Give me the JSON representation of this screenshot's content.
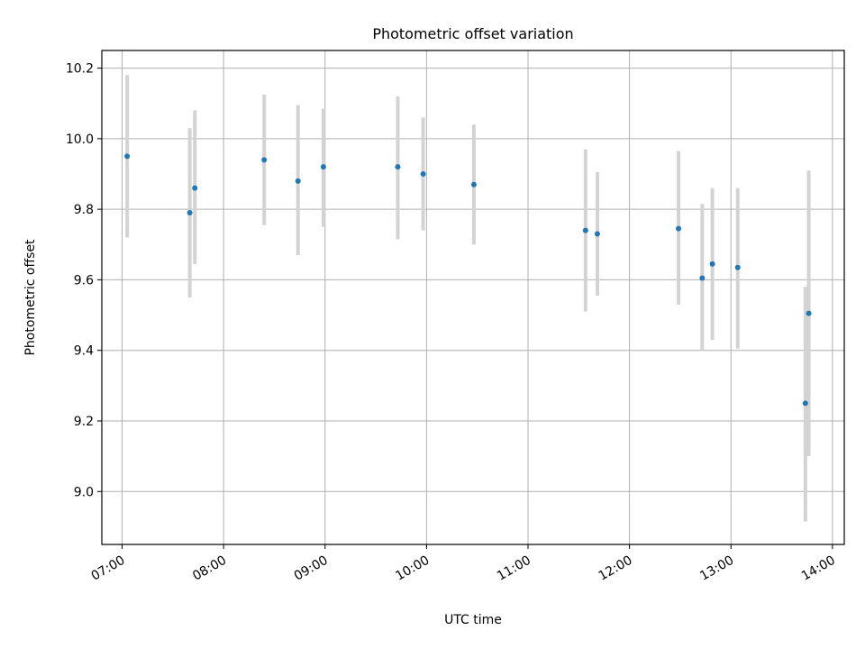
{
  "chart_data": {
    "type": "scatter",
    "title": "Photometric offset variation",
    "xlabel": "UTC time",
    "ylabel": "Photometric offset",
    "xlim": [
      "06:48",
      "14:07"
    ],
    "ylim": [
      8.85,
      10.25
    ],
    "x_ticks": [
      "07:00",
      "08:00",
      "09:00",
      "10:00",
      "11:00",
      "12:00",
      "13:00",
      "14:00"
    ],
    "y_ticks": [
      "9.0",
      "9.2",
      "9.4",
      "9.6",
      "9.8",
      "10.0",
      "10.2"
    ],
    "grid": true,
    "colors": {
      "point": "#1f77b4",
      "errorbar": "#d3d3d3",
      "grid": "#b0b0b0"
    },
    "points": [
      {
        "x": "07:03",
        "y": 9.95,
        "err_low": 9.72,
        "err_high": 10.18
      },
      {
        "x": "07:40",
        "y": 9.79,
        "err_low": 9.55,
        "err_high": 10.03
      },
      {
        "x": "07:43",
        "y": 9.86,
        "err_low": 9.645,
        "err_high": 10.08
      },
      {
        "x": "08:24",
        "y": 9.94,
        "err_low": 9.755,
        "err_high": 10.125
      },
      {
        "x": "08:44",
        "y": 9.88,
        "err_low": 9.67,
        "err_high": 10.095
      },
      {
        "x": "08:59",
        "y": 9.92,
        "err_low": 9.75,
        "err_high": 10.085
      },
      {
        "x": "09:43",
        "y": 9.92,
        "err_low": 9.715,
        "err_high": 10.12
      },
      {
        "x": "09:58",
        "y": 9.9,
        "err_low": 9.74,
        "err_high": 10.06
      },
      {
        "x": "10:28",
        "y": 9.87,
        "err_low": 9.7,
        "err_high": 10.04
      },
      {
        "x": "11:34",
        "y": 9.74,
        "err_low": 9.51,
        "err_high": 9.97
      },
      {
        "x": "11:41",
        "y": 9.73,
        "err_low": 9.555,
        "err_high": 9.905
      },
      {
        "x": "12:29",
        "y": 9.745,
        "err_low": 9.53,
        "err_high": 9.965
      },
      {
        "x": "12:43",
        "y": 9.605,
        "err_low": 9.4,
        "err_high": 9.815
      },
      {
        "x": "12:49",
        "y": 9.645,
        "err_low": 9.43,
        "err_high": 9.86
      },
      {
        "x": "13:04",
        "y": 9.635,
        "err_low": 9.405,
        "err_high": 9.86
      },
      {
        "x": "13:44",
        "y": 9.25,
        "err_low": 8.915,
        "err_high": 9.58
      },
      {
        "x": "13:46",
        "y": 9.505,
        "err_low": 9.1,
        "err_high": 9.91
      }
    ]
  }
}
